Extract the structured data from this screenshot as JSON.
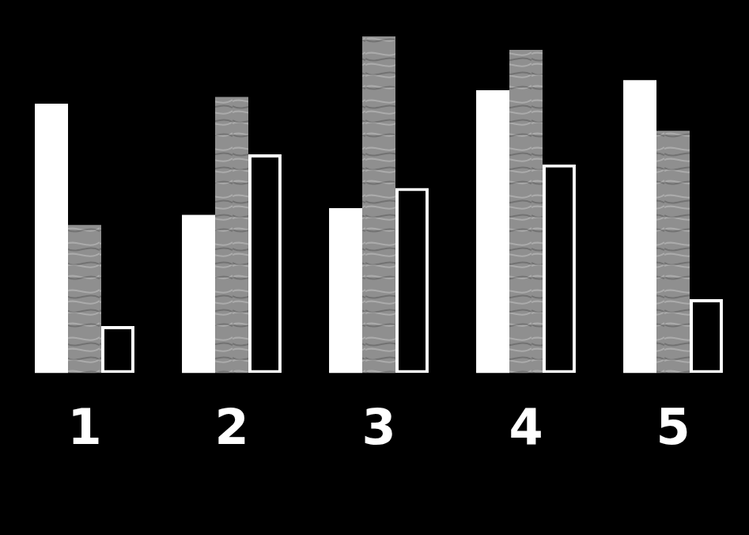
{
  "chart_data": {
    "type": "bar",
    "categories": [
      "1",
      "2",
      "3",
      "4",
      "5"
    ],
    "series": [
      {
        "color": "#ffffff",
        "values": [
          80,
          47,
          49,
          84,
          87
        ]
      },
      {
        "color": "#8f8f8f",
        "values": [
          44,
          82,
          100,
          96,
          72
        ]
      },
      {
        "color": "#ffffff",
        "values": [
          14,
          65,
          55,
          62,
          22
        ]
      }
    ],
    "ylim": [
      0,
      100
    ],
    "grid": false,
    "tick_labels": "x"
  }
}
